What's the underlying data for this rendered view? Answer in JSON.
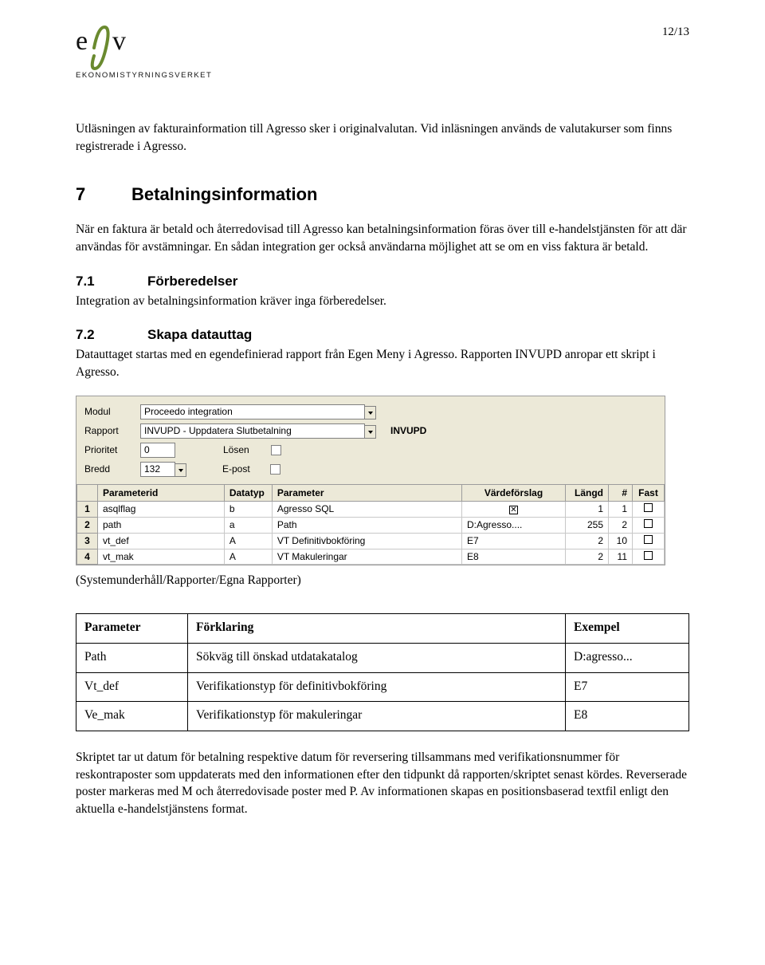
{
  "page_number": "12/13",
  "logo": {
    "brand_text": "esv",
    "subtitle": "EKONOMISTYRNINGSVERKET",
    "green": "#6a8a2f",
    "black": "#111111"
  },
  "intro_para": "Utläsningen av fakturainformation till Agresso sker i originalvalutan. Vid inläsningen används de valutakurser som finns registrerade i Agresso.",
  "section7": {
    "num": "7",
    "title": "Betalningsinformation"
  },
  "para7": "När en faktura är betald och återredovisad till Agresso kan betalningsinformation föras över till e-handelstjänsten för att där användas för avstämningar. En sådan integration ger också användarna möjlighet att se om en viss faktura är betald.",
  "sub71": {
    "num": "7.1",
    "title": "Förberedelser"
  },
  "para71": "Integration av betalningsinformation kräver inga förberedelser.",
  "sub72": {
    "num": "7.2",
    "title": "Skapa datauttag"
  },
  "para72a": "Datauttaget startas med en egendefinierad rapport från Egen Meny i Agresso. Rapporten INVUPD anropar ett skript i Agresso.",
  "form": {
    "labels": {
      "modul": "Modul",
      "rapport": "Rapport",
      "prioritet": "Prioritet",
      "bredd": "Bredd",
      "losen": "Lösen",
      "epost": "E-post"
    },
    "modul_value": "Proceedo integration",
    "rapport_value": "INVUPD - Uppdatera Slutbetalning",
    "rapport_code": "INVUPD",
    "prioritet_value": "0",
    "bredd_value": "132",
    "grid": {
      "headers": [
        "Parameterid",
        "Datatyp",
        "Parameter",
        "Värdeförslag",
        "Längd",
        "#",
        "Fast"
      ],
      "rows": [
        {
          "n": "1",
          "id": "asqlflag",
          "dt": "b",
          "param": "Agresso SQL",
          "val": "",
          "val_check": true,
          "len": "1",
          "hash": "1",
          "fast": false
        },
        {
          "n": "2",
          "id": "path",
          "dt": "a",
          "param": "Path",
          "val": "D:Agresso....",
          "val_check": false,
          "len": "255",
          "hash": "2",
          "fast": false
        },
        {
          "n": "3",
          "id": "vt_def",
          "dt": "A",
          "param": "VT Definitivbokföring",
          "val": "E7",
          "val_check": false,
          "len": "2",
          "hash": "10",
          "fast": false
        },
        {
          "n": "4",
          "id": "vt_mak",
          "dt": "A",
          "param": "VT Makuleringar",
          "val": "E8",
          "val_check": false,
          "len": "2",
          "hash": "11",
          "fast": false
        }
      ]
    }
  },
  "caption72": "(Systemunderhåll/Rapporter/Egna Rapporter)",
  "param_table": {
    "headers": [
      "Parameter",
      "Förklaring",
      "Exempel"
    ],
    "rows": [
      [
        "Path",
        "Sökväg till önskad utdatakatalog",
        "D:agresso..."
      ],
      [
        "Vt_def",
        "Verifikationstyp för definitivbokföring",
        "E7"
      ],
      [
        "Ve_mak",
        "Verifikationstyp för makuleringar",
        "E8"
      ]
    ]
  },
  "closing_para": "Skriptet tar ut datum för betalning respektive datum för reversering tillsammans med verifikationsnummer för reskontraposter som uppdaterats med den informationen efter den tidpunkt då rapporten/skriptet senast kördes. Reverserade poster markeras med M och återredovisade poster med P. Av informationen skapas en positionsbaserad textfil enligt den aktuella e-handelstjänstens format."
}
